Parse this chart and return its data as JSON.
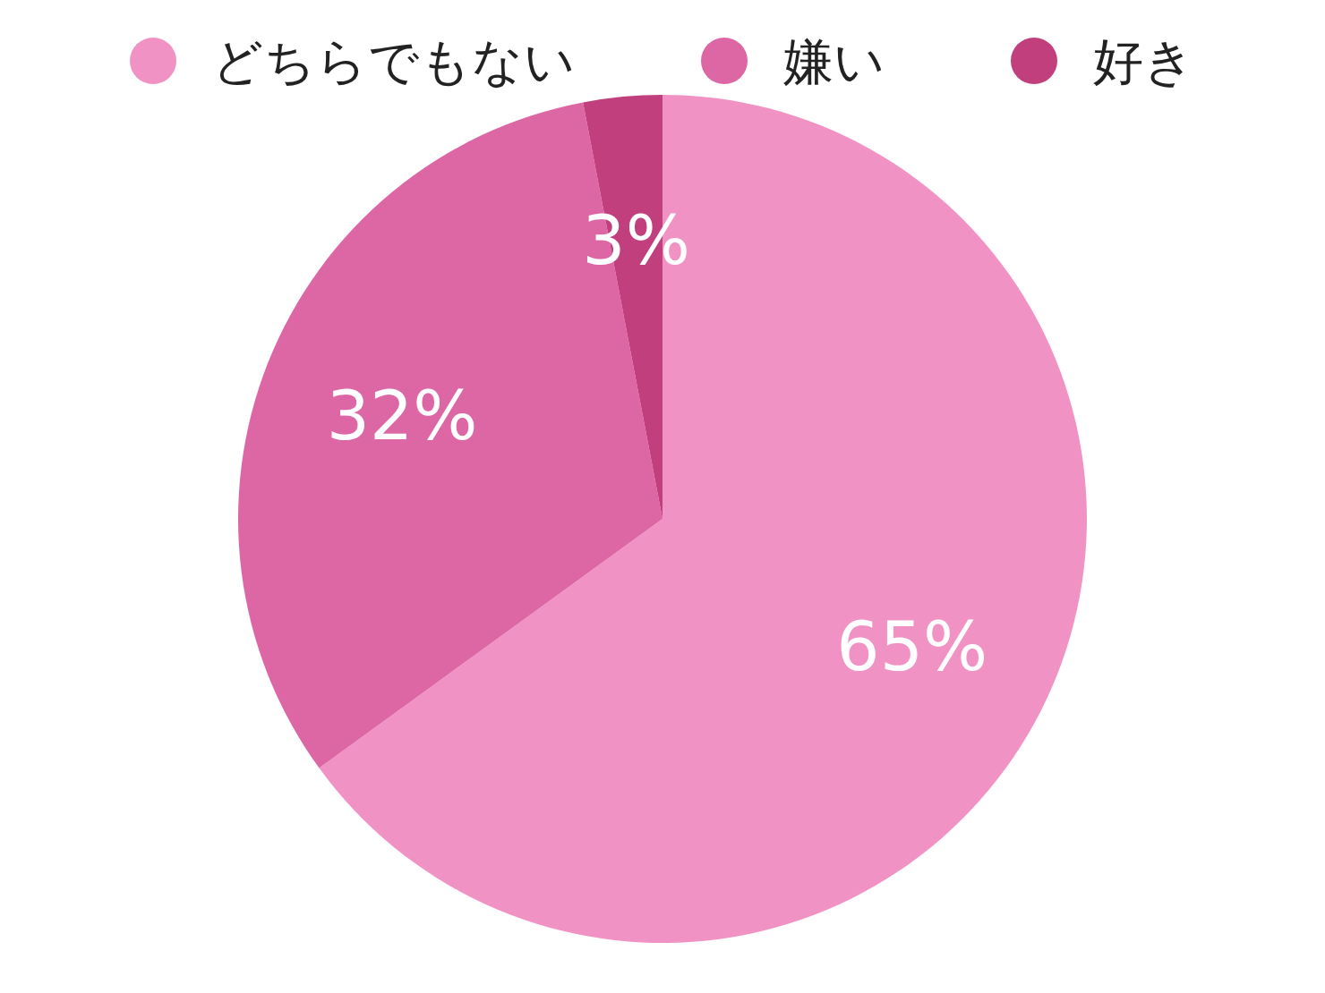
{
  "chart_data": {
    "type": "pie",
    "categories": [
      "どちらでもない",
      "嫌い",
      "好き"
    ],
    "values": [
      65,
      32,
      3
    ],
    "colors": [
      "#f093c4",
      "#dc67a4",
      "#c13f7d"
    ],
    "value_labels": [
      "65%",
      "32%",
      "3%"
    ],
    "legend": "top"
  }
}
